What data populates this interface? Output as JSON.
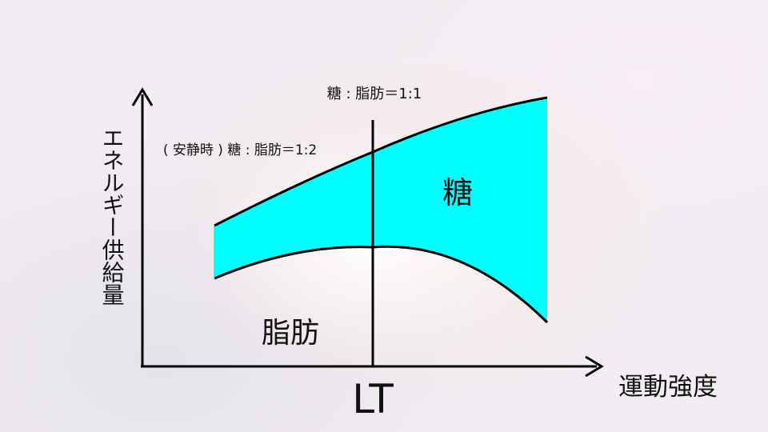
{
  "diagram": {
    "y_axis_label": "エネルギー供給量",
    "x_axis_label": "運動強度",
    "lt_label": "LT",
    "sugar_label": "糖",
    "fat_label": "脂肪",
    "rest_ratio_label": "( 安静時 ) 糖 : 脂肪＝1:2",
    "lt_ratio_label": "糖 : 脂肪＝1:1",
    "colors": {
      "sugar_band": "#00ffff",
      "lines": "#000000"
    }
  }
}
